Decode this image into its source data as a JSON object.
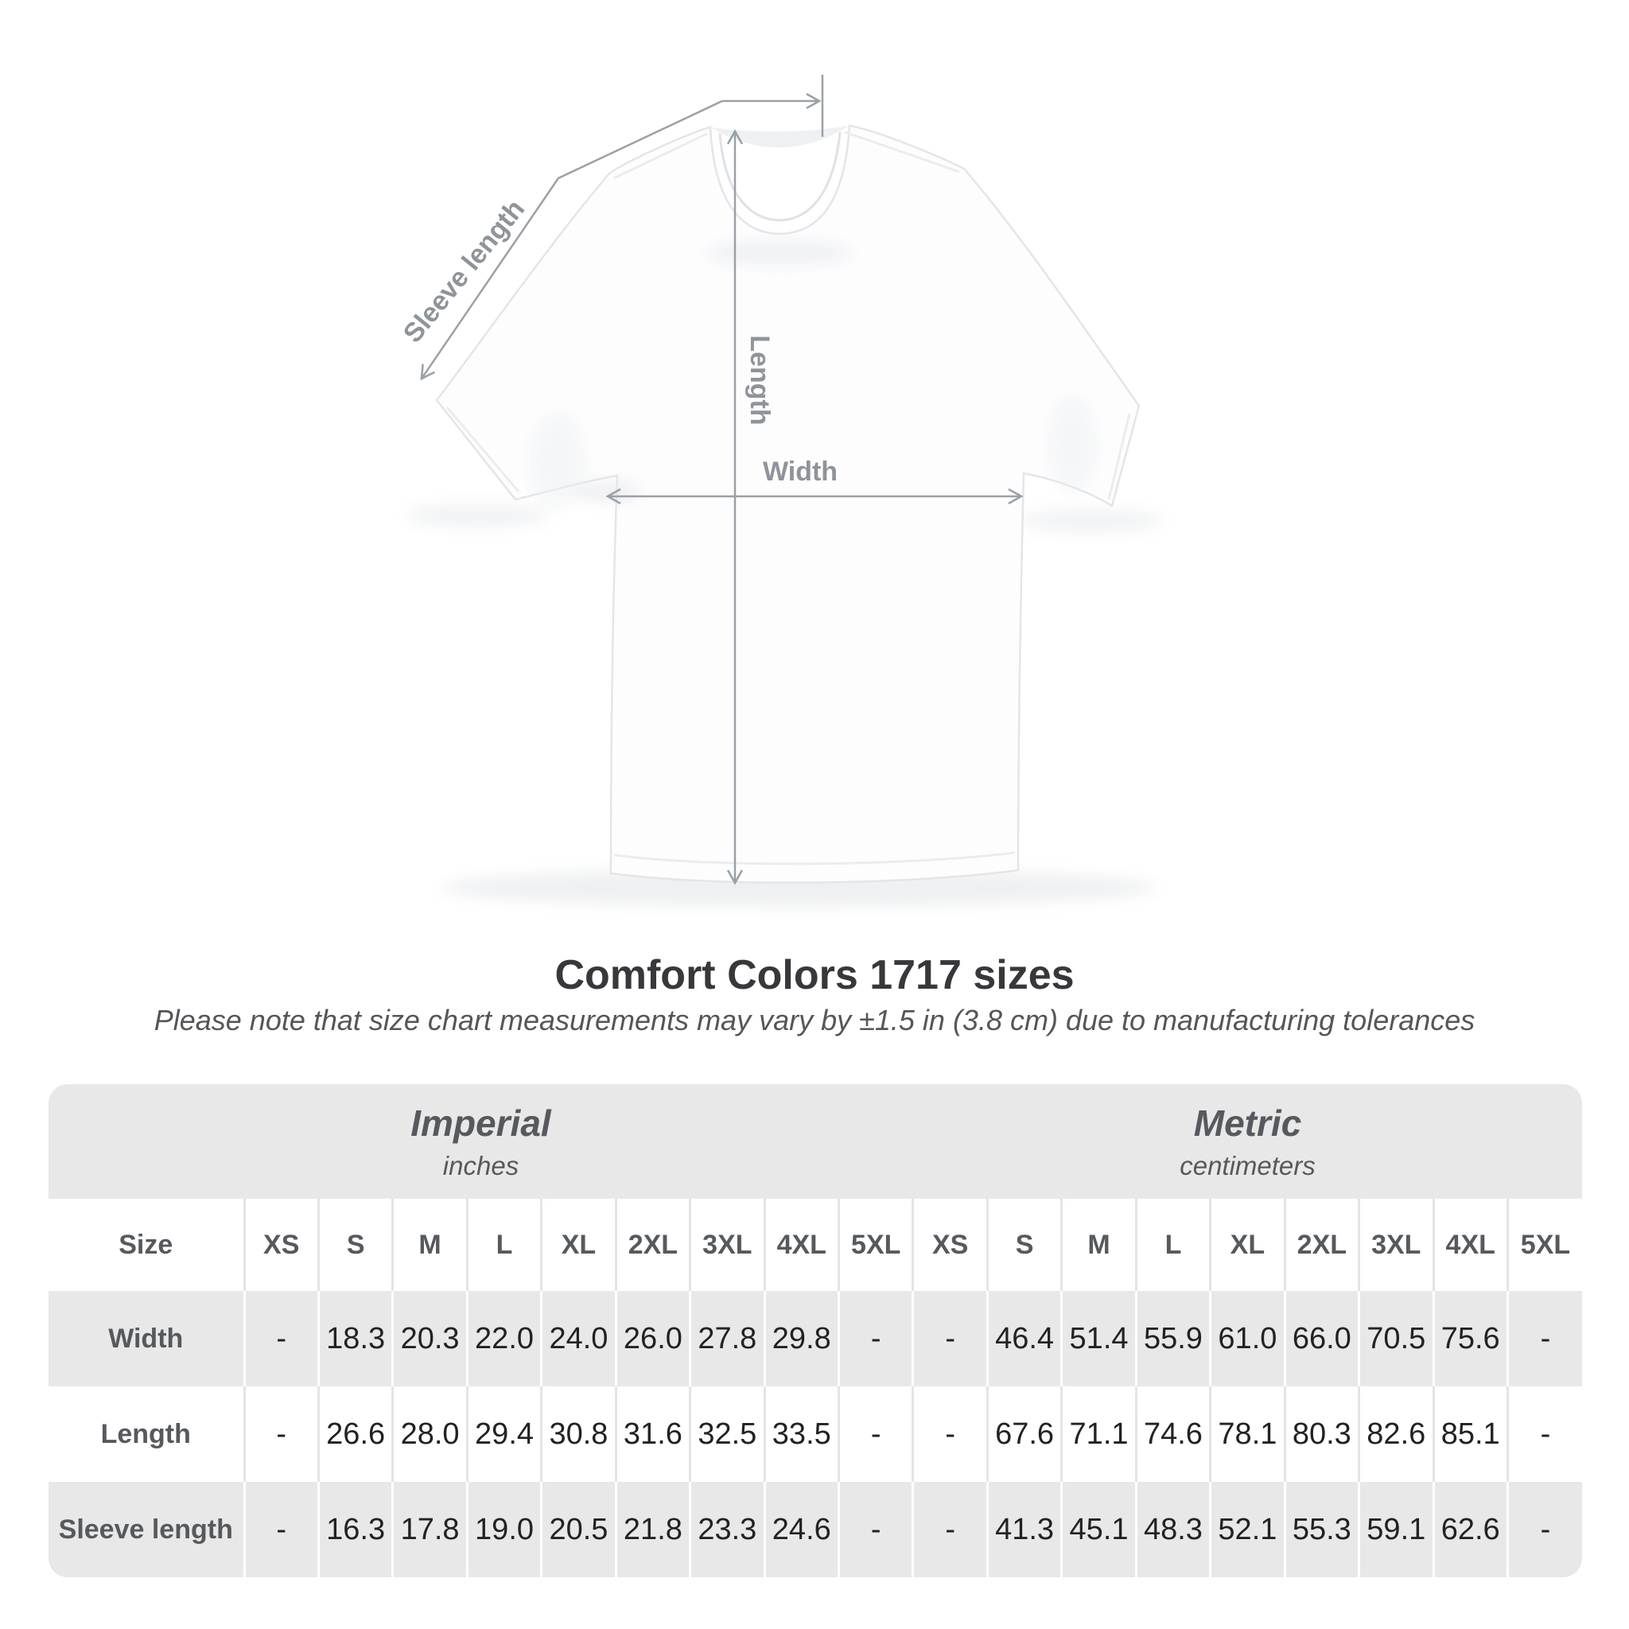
{
  "diagram": {
    "sleeve_label": "Sleeve length",
    "length_label": "Length",
    "width_label": "Width"
  },
  "title": "Comfort Colors 1717 sizes",
  "subtitle": "Please note that size chart measurements may vary by ±1.5 in (3.8 cm) due to manufacturing tolerances",
  "table": {
    "groups": [
      {
        "name": "Imperial",
        "unit": "inches"
      },
      {
        "name": "Metric",
        "unit": "centimeters"
      }
    ],
    "size_label": "Size",
    "sizes": [
      "XS",
      "S",
      "M",
      "L",
      "XL",
      "2XL",
      "3XL",
      "4XL",
      "5XL"
    ],
    "rows": [
      {
        "label": "Width",
        "imperial": [
          "-",
          "18.3",
          "20.3",
          "22.0",
          "24.0",
          "26.0",
          "27.8",
          "29.8",
          "-"
        ],
        "metric": [
          "-",
          "46.4",
          "51.4",
          "55.9",
          "61.0",
          "66.0",
          "70.5",
          "75.6",
          "-"
        ]
      },
      {
        "label": "Length",
        "imperial": [
          "-",
          "26.6",
          "28.0",
          "29.4",
          "30.8",
          "31.6",
          "32.5",
          "33.5",
          "-"
        ],
        "metric": [
          "-",
          "67.6",
          "71.1",
          "74.6",
          "78.1",
          "80.3",
          "82.6",
          "85.1",
          "-"
        ]
      },
      {
        "label": "Sleeve length",
        "imperial": [
          "-",
          "16.3",
          "17.8",
          "19.0",
          "20.5",
          "21.8",
          "23.3",
          "24.6",
          "-"
        ],
        "metric": [
          "-",
          "41.3",
          "45.1",
          "48.3",
          "52.1",
          "55.3",
          "59.1",
          "62.6",
          "-"
        ]
      }
    ]
  },
  "colors": {
    "table_band": "#e8e8e8",
    "value_text": "#212224",
    "header_text": "#56595d",
    "measure_line": "#9aa1a7",
    "measure_label": "#8e9499",
    "title_text": "#37383b",
    "subtitle_text": "#55565a"
  }
}
